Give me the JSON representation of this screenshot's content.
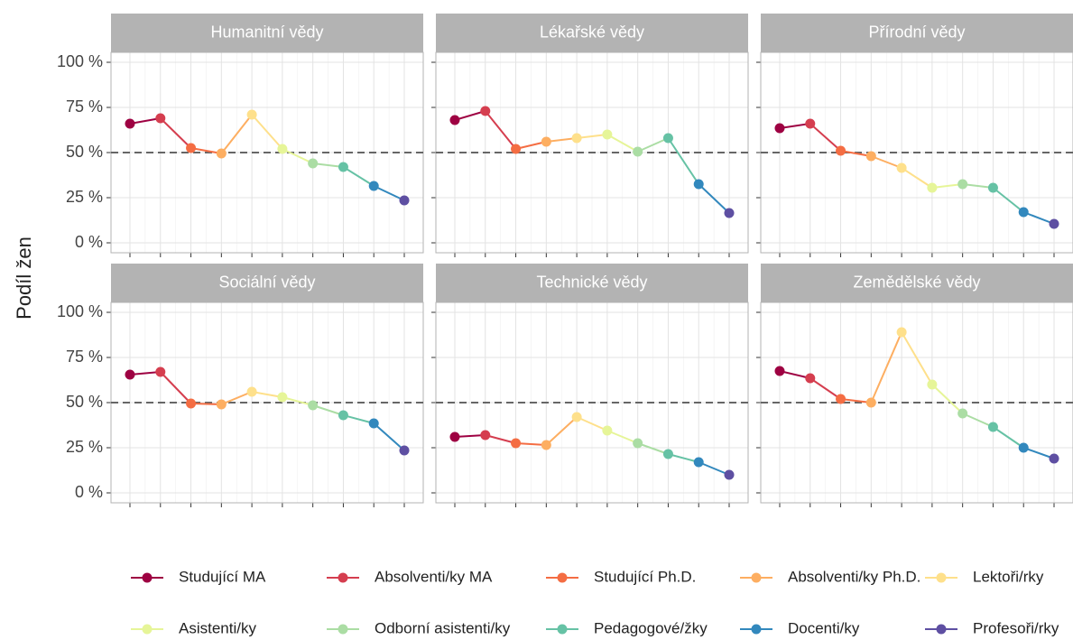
{
  "y_label": "Podíl žen",
  "legend": {
    "items": [
      {
        "name": "Studující MA",
        "color": "#9e0142"
      },
      {
        "name": "Absolventi/ky MA",
        "color": "#d53e4f"
      },
      {
        "name": "Studující Ph.D.",
        "color": "#f46d43"
      },
      {
        "name": "Absolventi/ky Ph.D.",
        "color": "#fdae61"
      },
      {
        "name": "Lektoři/rky",
        "color": "#fee08b"
      },
      {
        "name": "Asistenti/ky",
        "color": "#e6f598"
      },
      {
        "name": "Odborní asistenti/ky",
        "color": "#abdda4"
      },
      {
        "name": "Pedagogové/žky",
        "color": "#66c2a5"
      },
      {
        "name": "Docenti/ky",
        "color": "#3288bd"
      },
      {
        "name": "Profesoři/rky",
        "color": "#5e4fa2"
      }
    ]
  },
  "chart_data": [
    {
      "type": "line",
      "title": "Humanitní vědy",
      "values": [
        66,
        69,
        52.5,
        49.5,
        71,
        52,
        44,
        42,
        31.5,
        23.5
      ],
      "ylim": [
        -5.5,
        105.5
      ],
      "yticks": [
        {
          "value": 0,
          "label": "0 %"
        },
        {
          "value": 25,
          "label": "25 %"
        },
        {
          "value": 50,
          "label": "50 %"
        },
        {
          "value": 75,
          "label": "75 %"
        },
        {
          "value": 100,
          "label": "100 %"
        }
      ],
      "hline": 50,
      "grid": true
    },
    {
      "type": "line",
      "title": "Lékařské vědy",
      "values": [
        68,
        73,
        52,
        56,
        58,
        60,
        50.5,
        58,
        32.5,
        16.5
      ],
      "ylim": [
        -5.5,
        105.5
      ],
      "yticks": [
        {
          "value": 0,
          "label": "0 %"
        },
        {
          "value": 25,
          "label": "25 %"
        },
        {
          "value": 50,
          "label": "50 %"
        },
        {
          "value": 75,
          "label": "75 %"
        },
        {
          "value": 100,
          "label": "100 %"
        }
      ],
      "hline": 50,
      "grid": true
    },
    {
      "type": "line",
      "title": "Přírodní vědy",
      "values": [
        63.5,
        66,
        51,
        48,
        41.5,
        30.5,
        32.5,
        30.5,
        17,
        10.5
      ],
      "ylim": [
        -5.5,
        105.5
      ],
      "yticks": [
        {
          "value": 0,
          "label": "0 %"
        },
        {
          "value": 25,
          "label": "25 %"
        },
        {
          "value": 50,
          "label": "50 %"
        },
        {
          "value": 75,
          "label": "75 %"
        },
        {
          "value": 100,
          "label": "100 %"
        }
      ],
      "hline": 50,
      "grid": true
    },
    {
      "type": "line",
      "title": "Sociální vědy",
      "values": [
        65.5,
        67,
        49.5,
        49,
        56,
        53,
        48.5,
        43,
        38.5,
        23.5
      ],
      "ylim": [
        -5.5,
        105.5
      ],
      "yticks": [
        {
          "value": 0,
          "label": "0 %"
        },
        {
          "value": 25,
          "label": "25 %"
        },
        {
          "value": 50,
          "label": "50 %"
        },
        {
          "value": 75,
          "label": "75 %"
        },
        {
          "value": 100,
          "label": "100 %"
        }
      ],
      "hline": 50,
      "grid": true
    },
    {
      "type": "line",
      "title": "Technické vědy",
      "values": [
        31,
        32,
        27.5,
        26.5,
        42,
        34.5,
        27.5,
        21.5,
        17,
        10
      ],
      "ylim": [
        -5.5,
        105.5
      ],
      "yticks": [
        {
          "value": 0,
          "label": "0 %"
        },
        {
          "value": 25,
          "label": "25 %"
        },
        {
          "value": 50,
          "label": "50 %"
        },
        {
          "value": 75,
          "label": "75 %"
        },
        {
          "value": 100,
          "label": "100 %"
        }
      ],
      "hline": 50,
      "grid": true
    },
    {
      "type": "line",
      "title": "Zemědělské vědy",
      "values": [
        67.5,
        63.5,
        52,
        50,
        89,
        60,
        44,
        36.5,
        25,
        19
      ],
      "ylim": [
        -5.5,
        105.5
      ],
      "yticks": [
        {
          "value": 0,
          "label": "0 %"
        },
        {
          "value": 25,
          "label": "25 %"
        },
        {
          "value": 50,
          "label": "50 %"
        },
        {
          "value": 75,
          "label": "75 %"
        },
        {
          "value": 100,
          "label": "100 %"
        }
      ],
      "hline": 50,
      "grid": true
    }
  ]
}
